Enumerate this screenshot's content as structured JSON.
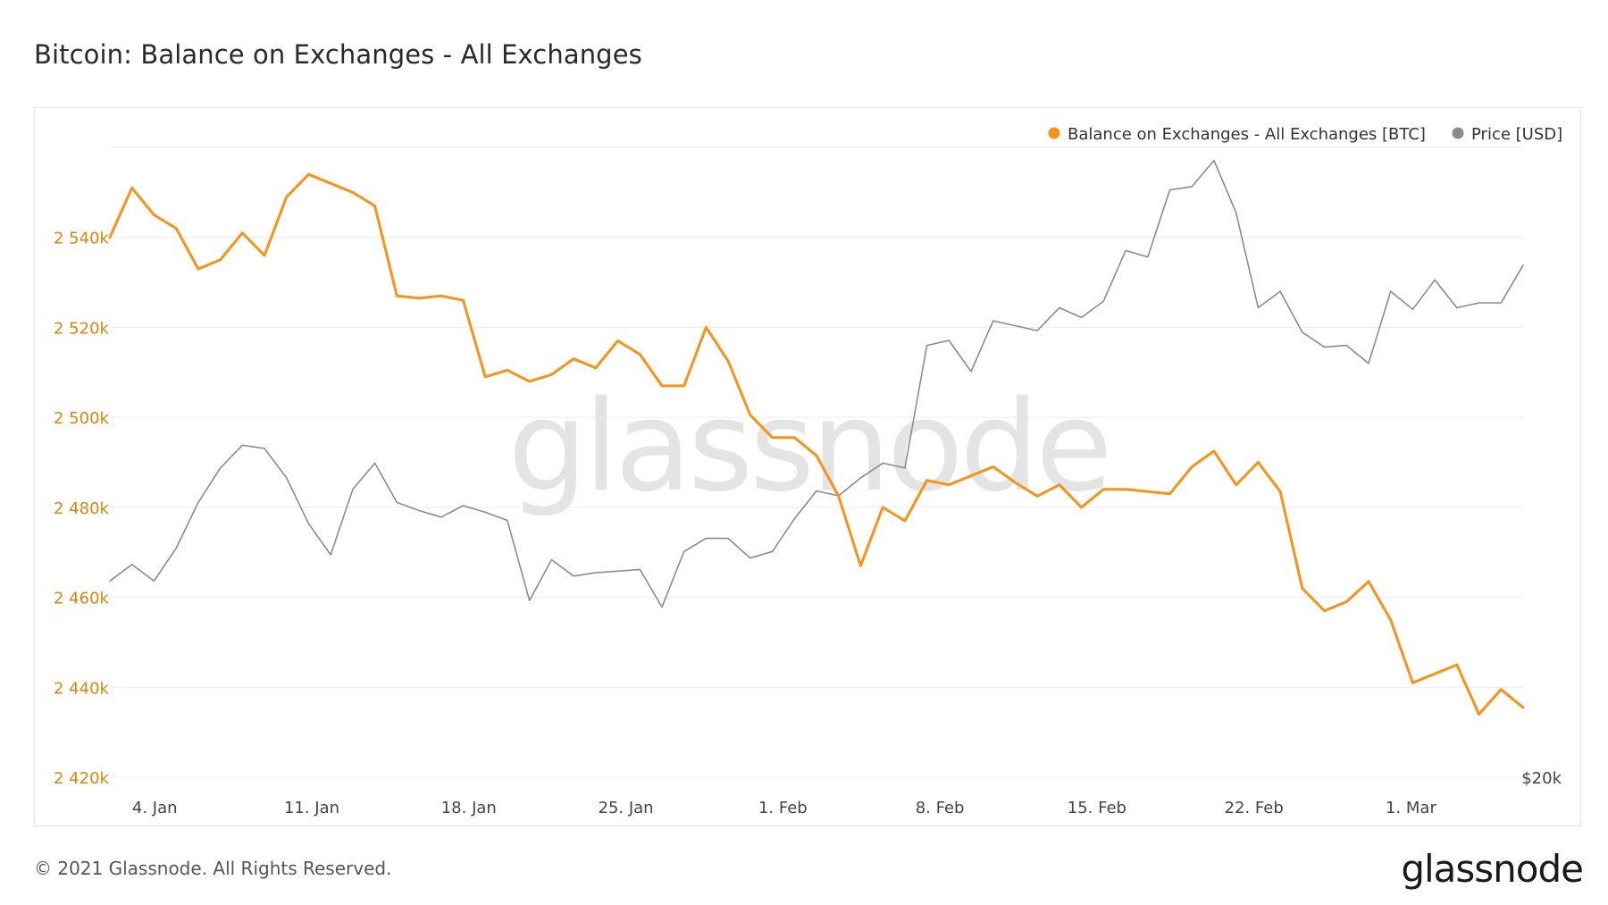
{
  "header": {
    "title": "Bitcoin: Balance on Exchanges - All Exchanges"
  },
  "watermark": "glassnode",
  "footer": {
    "copyright": "© 2021 Glassnode. All Rights Reserved.",
    "logo": "glassnode"
  },
  "colors": {
    "balance": "#f7931a",
    "price": "#8c8c8c",
    "axis_left": "#d9860e",
    "grid": "#ececec"
  },
  "chart_data": {
    "type": "line",
    "title": "Bitcoin: Balance on Exchanges - All Exchanges",
    "legend_position": "top-right",
    "grid": true,
    "x_start": "2021-01-02",
    "x_end": "2021-03-06",
    "x_ticks": [
      "4. Jan",
      "11. Jan",
      "18. Jan",
      "25. Jan",
      "1. Feb",
      "8. Feb",
      "15. Feb",
      "22. Feb",
      "1. Mar"
    ],
    "y_left": {
      "label": "",
      "ticks": [
        "2 420k",
        "2 440k",
        "2 460k",
        "2 480k",
        "2 500k",
        "2 520k",
        "2 540k"
      ],
      "range": [
        2420,
        2560
      ]
    },
    "y_right": {
      "label": "",
      "ticks": [
        "$20k"
      ]
    },
    "series": [
      {
        "name": "Balance on Exchanges - All Exchanges [BTC]",
        "axis": "left",
        "unit": "k BTC",
        "values": [
          2540,
          2551,
          2545,
          2542,
          2533,
          2535,
          2541,
          2536,
          2549,
          2554,
          2552,
          2550,
          2547,
          2527,
          2526.5,
          2527,
          2526,
          2509,
          2510.5,
          2508,
          2509.5,
          2513,
          2511,
          2517,
          2514,
          2507,
          2507,
          2520,
          2512.5,
          2500.5,
          2495.5,
          2495.5,
          2491.5,
          2482.5,
          2467,
          2480,
          2477,
          2486,
          2485,
          2487,
          2489,
          2485.5,
          2482.5,
          2485,
          2480,
          2484,
          2484,
          2483.5,
          2483,
          2489,
          2492.5,
          2485,
          2490,
          2483.5,
          2462,
          2457,
          2459,
          2463.5,
          2455,
          2441,
          2443,
          2445,
          2434,
          2439.5,
          2435.5
        ]
      },
      {
        "name": "Price [USD]",
        "axis": "right",
        "unit": "USD",
        "values": [
          32000,
          33000,
          32000,
          34000,
          36800,
          38900,
          40300,
          40100,
          38300,
          35500,
          33600,
          37600,
          39200,
          36800,
          36300,
          35900,
          36600,
          36200,
          35700,
          30800,
          33300,
          32300,
          32500,
          32600,
          32700,
          30400,
          33800,
          34600,
          34600,
          33400,
          33800,
          35800,
          37500,
          37200,
          38300,
          39200,
          38900,
          46400,
          46700,
          44800,
          47900,
          47600,
          47300,
          48700,
          48100,
          49100,
          52200,
          51800,
          55900,
          56100,
          57700,
          54500,
          48700,
          49700,
          47200,
          46300,
          46400,
          45300,
          49700,
          48600,
          50400,
          48700,
          49000,
          49000,
          51300
        ]
      }
    ]
  }
}
